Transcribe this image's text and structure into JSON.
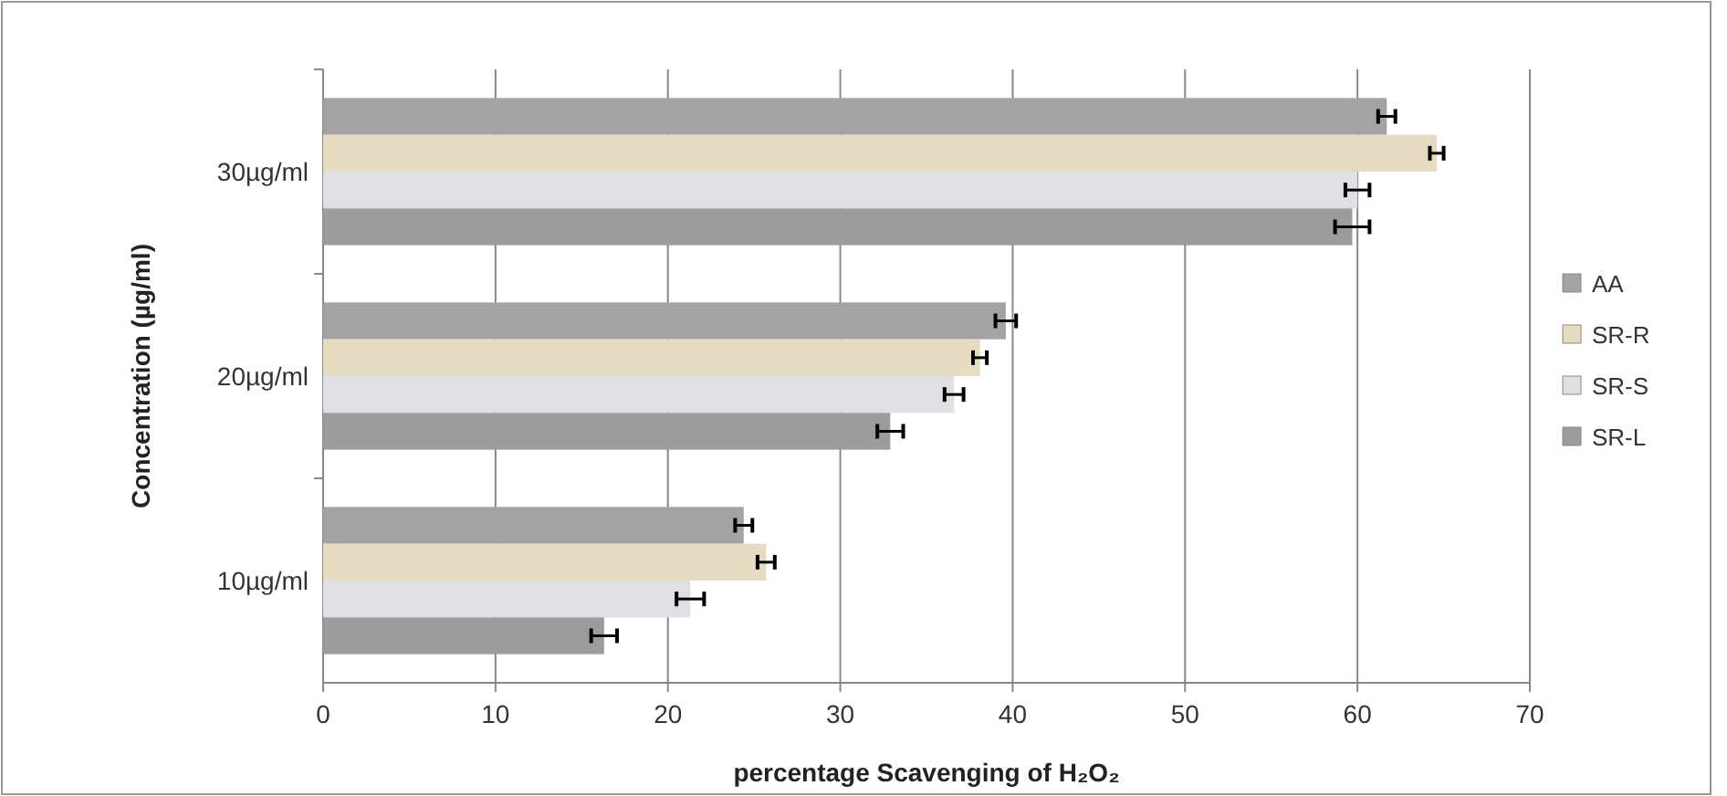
{
  "chart_data": {
    "type": "bar",
    "orientation": "horizontal",
    "xlabel": "percentage Scavenging of H₂O₂",
    "ylabel": "Concentration (µg/ml)",
    "categories": [
      "30µg/ml",
      "20µg/ml",
      "10µg/ml"
    ],
    "series": [
      {
        "name": "AA",
        "color": "#a3a3a3",
        "values": [
          61.7,
          39.6,
          24.4
        ],
        "errors": [
          0.5,
          0.6,
          0.5
        ]
      },
      {
        "name": "SR-R",
        "color": "#e6dbc0",
        "values": [
          64.6,
          38.1,
          25.7
        ],
        "errors": [
          0.4,
          0.4,
          0.5
        ]
      },
      {
        "name": "SR-S",
        "color": "#dfe0e6",
        "values": [
          60.0,
          36.6,
          21.3
        ],
        "errors": [
          0.7,
          0.55,
          0.8
        ]
      },
      {
        "name": "SR-L",
        "color": "#9c9c9c",
        "values": [
          59.7,
          32.9,
          16.3
        ],
        "errors": [
          1.0,
          0.75,
          0.75
        ]
      }
    ],
    "xlim": [
      0,
      70
    ],
    "xticks": [
      0,
      10,
      20,
      30,
      40,
      50,
      60,
      70
    ],
    "grid": "x",
    "legend": "right"
  }
}
